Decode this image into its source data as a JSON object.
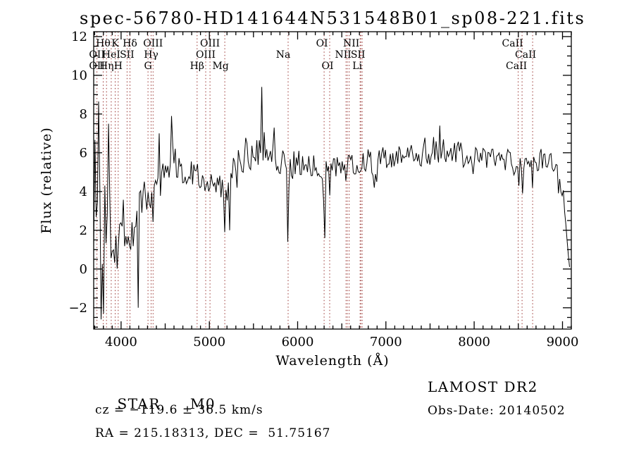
{
  "title": "spec-56780-HD141644N531548B01_sp08-221.fits",
  "annotations": {
    "object_class": "STAR",
    "subclass": "M0",
    "survey": "LAMOST DR2",
    "cz": "cz = −119.6 ± 36.5 km/s",
    "obs_date": "Obs-Date: 20140502",
    "coordinates": "RA = 215.18313, DEC =  51.75167"
  },
  "chart_data": {
    "type": "line",
    "title": "spec-56780-HD141644N531548B01_sp08-221.fits",
    "xlabel": "Wavelength (Å)",
    "ylabel": "Flux (relative)",
    "series_name": "flux",
    "xlim": [
      3690,
      9100
    ],
    "ylim": [
      -3.1,
      12.25
    ],
    "xticks": [
      4000,
      5000,
      6000,
      7000,
      8000,
      9000
    ],
    "yticks": [
      -2,
      0,
      2,
      4,
      6,
      8,
      10,
      12
    ],
    "x_minor_step": 100,
    "y_minor_step": 0.5,
    "grid": false,
    "line_color": "#000000",
    "marker_color": "#993330",
    "spectral_lines": [
      {
        "label": "OII",
        "wavelength": 3727,
        "row": 2
      },
      {
        "label": "OII",
        "wavelength": 3727,
        "row": 3
      },
      {
        "label": "Hθ",
        "wavelength": 3798,
        "row": 1
      },
      {
        "label": "Hη",
        "wavelength": 3835,
        "row": 3
      },
      {
        "label": "HeI",
        "wavelength": 3889,
        "row": 2
      },
      {
        "label": "K",
        "wavelength": 3933,
        "row": 1
      },
      {
        "label": "H",
        "wavelength": 3968,
        "row": 3
      },
      {
        "label": "SII",
        "wavelength": 4068,
        "row": 2
      },
      {
        "label": "Hδ",
        "wavelength": 4101,
        "row": 1
      },
      {
        "label": "G",
        "wavelength": 4305,
        "row": 3
      },
      {
        "label": "Hγ",
        "wavelength": 4340,
        "row": 2
      },
      {
        "label": "OIII",
        "wavelength": 4363,
        "row": 1
      },
      {
        "label": "Hβ",
        "wavelength": 4861,
        "row": 3
      },
      {
        "label": "OIII",
        "wavelength": 4959,
        "row": 2
      },
      {
        "label": "OIII",
        "wavelength": 5007,
        "row": 1
      },
      {
        "label": "Mg",
        "wavelength": 5175,
        "row": 3,
        "dx": -6
      },
      {
        "label": "Na",
        "wavelength": 5892,
        "row": 2,
        "dx": -7
      },
      {
        "label": "OI",
        "wavelength": 6300,
        "row": 1,
        "dx": -3
      },
      {
        "label": "OI",
        "wavelength": 6363,
        "row": 3,
        "dx": -3
      },
      {
        "label": "NII",
        "wavelength": 6548,
        "row": 2,
        "dx": -4
      },
      {
        "label": "",
        "wavelength": 6563
      },
      {
        "label": "NII",
        "wavelength": 6584,
        "row": 1,
        "dx": 3
      },
      {
        "label": "Li",
        "wavelength": 6708,
        "row": 3,
        "dx": -4
      },
      {
        "label": "SII",
        "wavelength": 6716,
        "row": 2,
        "dx": -4
      },
      {
        "label": "",
        "wavelength": 6731
      },
      {
        "label": "CaII",
        "wavelength": 8498,
        "row": 1,
        "dx": -8
      },
      {
        "label": "CaII",
        "wavelength": 8542,
        "row": 3,
        "dx": -8
      },
      {
        "label": "CaII",
        "wavelength": 8662,
        "row": 2,
        "dx": -10
      }
    ],
    "envelope": [
      [
        3690,
        4.0,
        4.5
      ],
      [
        3710,
        3.5,
        5.0
      ],
      [
        3730,
        3.2,
        5.0
      ],
      [
        3750,
        2.8,
        4.8
      ],
      [
        3770,
        2.5,
        4.5
      ],
      [
        3790,
        2.8,
        4.2
      ],
      [
        3810,
        3.2,
        4.0
      ],
      [
        3830,
        3.5,
        3.6
      ],
      [
        3850,
        3.0,
        3.2
      ],
      [
        3870,
        2.6,
        2.8
      ],
      [
        3890,
        2.4,
        2.4
      ],
      [
        3910,
        2.2,
        2.0
      ],
      [
        3930,
        2.0,
        1.8
      ],
      [
        3950,
        1.9,
        1.6
      ],
      [
        3970,
        2.0,
        1.5
      ],
      [
        4000,
        2.2,
        1.4
      ],
      [
        4030,
        2.4,
        1.3
      ],
      [
        4060,
        2.3,
        1.3
      ],
      [
        4090,
        2.1,
        1.4
      ],
      [
        4120,
        2.3,
        1.3
      ],
      [
        4150,
        2.7,
        1.2
      ],
      [
        4200,
        3.1,
        1.1
      ],
      [
        4250,
        3.4,
        1.1
      ],
      [
        4300,
        3.6,
        1.2
      ],
      [
        4350,
        4.0,
        1.1
      ],
      [
        4400,
        4.6,
        1.0
      ],
      [
        4450,
        5.1,
        1.0
      ],
      [
        4500,
        5.4,
        0.9
      ],
      [
        4550,
        5.5,
        1.0
      ],
      [
        4600,
        5.7,
        1.0
      ],
      [
        4650,
        5.4,
        0.9
      ],
      [
        4700,
        5.2,
        0.8
      ],
      [
        4750,
        5.0,
        0.8
      ],
      [
        4800,
        5.0,
        0.8
      ],
      [
        4860,
        4.8,
        0.8
      ],
      [
        4900,
        5.0,
        0.8
      ],
      [
        4950,
        4.8,
        0.8
      ],
      [
        5000,
        4.7,
        0.8
      ],
      [
        5060,
        4.5,
        0.8
      ],
      [
        5120,
        4.2,
        0.9
      ],
      [
        5160,
        3.4,
        1.0
      ],
      [
        5185,
        3.3,
        1.0
      ],
      [
        5220,
        4.4,
        0.9
      ],
      [
        5270,
        5.0,
        0.8
      ],
      [
        5320,
        5.4,
        0.9
      ],
      [
        5380,
        5.7,
        0.9
      ],
      [
        5440,
        6.0,
        1.0
      ],
      [
        5500,
        6.2,
        1.0
      ],
      [
        5560,
        6.4,
        1.1
      ],
      [
        5600,
        6.4,
        1.1
      ],
      [
        5650,
        6.2,
        1.0
      ],
      [
        5700,
        6.0,
        0.9
      ],
      [
        5760,
        5.8,
        0.8
      ],
      [
        5820,
        5.6,
        0.8
      ],
      [
        5870,
        5.4,
        0.8
      ],
      [
        5892,
        3.8,
        1.2
      ],
      [
        5915,
        5.2,
        0.7
      ],
      [
        5960,
        5.4,
        0.7
      ],
      [
        6020,
        5.5,
        0.7
      ],
      [
        6080,
        5.4,
        0.6
      ],
      [
        6140,
        5.4,
        0.6
      ],
      [
        6200,
        5.3,
        0.6
      ],
      [
        6260,
        5.1,
        0.7
      ],
      [
        6300,
        4.4,
        1.0
      ],
      [
        6330,
        5.2,
        0.6
      ],
      [
        6400,
        5.3,
        0.6
      ],
      [
        6460,
        5.2,
        0.6
      ],
      [
        6520,
        5.2,
        0.7
      ],
      [
        6563,
        5.2,
        0.7
      ],
      [
        6620,
        5.4,
        0.6
      ],
      [
        6680,
        5.5,
        0.6
      ],
      [
        6740,
        5.6,
        0.6
      ],
      [
        6800,
        5.6,
        0.6
      ],
      [
        6860,
        5.3,
        0.7
      ],
      [
        6920,
        5.6,
        0.6
      ],
      [
        6980,
        5.7,
        0.6
      ],
      [
        7040,
        5.7,
        0.6
      ],
      [
        7100,
        5.8,
        0.6
      ],
      [
        7160,
        5.9,
        0.6
      ],
      [
        7220,
        5.9,
        0.6
      ],
      [
        7280,
        6.0,
        0.6
      ],
      [
        7340,
        6.0,
        0.6
      ],
      [
        7400,
        5.9,
        0.7
      ],
      [
        7460,
        6.0,
        0.7
      ],
      [
        7520,
        6.1,
        0.7
      ],
      [
        7580,
        6.3,
        0.8
      ],
      [
        7640,
        6.2,
        0.7
      ],
      [
        7700,
        6.1,
        0.7
      ],
      [
        7760,
        6.0,
        0.6
      ],
      [
        7820,
        6.0,
        0.6
      ],
      [
        7880,
        5.9,
        0.6
      ],
      [
        7940,
        5.8,
        0.6
      ],
      [
        8000,
        5.8,
        0.6
      ],
      [
        8060,
        5.7,
        0.6
      ],
      [
        8120,
        5.7,
        0.6
      ],
      [
        8180,
        5.6,
        0.7
      ],
      [
        8240,
        5.6,
        0.7
      ],
      [
        8300,
        5.6,
        0.6
      ],
      [
        8360,
        5.7,
        0.6
      ],
      [
        8420,
        5.7,
        0.6
      ],
      [
        8480,
        5.2,
        0.7
      ],
      [
        8520,
        5.0,
        0.8
      ],
      [
        8560,
        5.2,
        0.7
      ],
      [
        8610,
        5.5,
        0.6
      ],
      [
        8650,
        5.1,
        0.7
      ],
      [
        8690,
        5.4,
        0.6
      ],
      [
        8740,
        5.6,
        0.6
      ],
      [
        8800,
        5.6,
        0.6
      ],
      [
        8860,
        5.4,
        0.6
      ],
      [
        8910,
        5.2,
        0.6
      ],
      [
        8950,
        4.9,
        0.6
      ],
      [
        8990,
        4.2,
        0.5
      ],
      [
        9020,
        3.4,
        0.4
      ],
      [
        9045,
        2.2,
        0.3
      ],
      [
        9065,
        0.8,
        0.2
      ],
      [
        9080,
        0.2,
        0.1
      ],
      [
        9090,
        0.15,
        0.05
      ]
    ],
    "spikes": [
      [
        3742,
        8.65
      ],
      [
        3772,
        -2.6
      ],
      [
        3800,
        -2.3
      ],
      [
        3862,
        7.5
      ],
      [
        4105,
        1.0
      ],
      [
        4198,
        -2.0
      ],
      [
        4435,
        7.0
      ],
      [
        4573,
        7.9
      ],
      [
        5170,
        1.9
      ],
      [
        5225,
        2.0
      ],
      [
        5592,
        9.4
      ],
      [
        5740,
        7.3
      ],
      [
        5892,
        1.4
      ],
      [
        6302,
        1.6
      ],
      [
        6363,
        3.8
      ],
      [
        6868,
        4.2
      ],
      [
        7608,
        7.4
      ],
      [
        8500,
        4.3
      ],
      [
        8545,
        3.9
      ],
      [
        8664,
        4.2
      ]
    ]
  }
}
